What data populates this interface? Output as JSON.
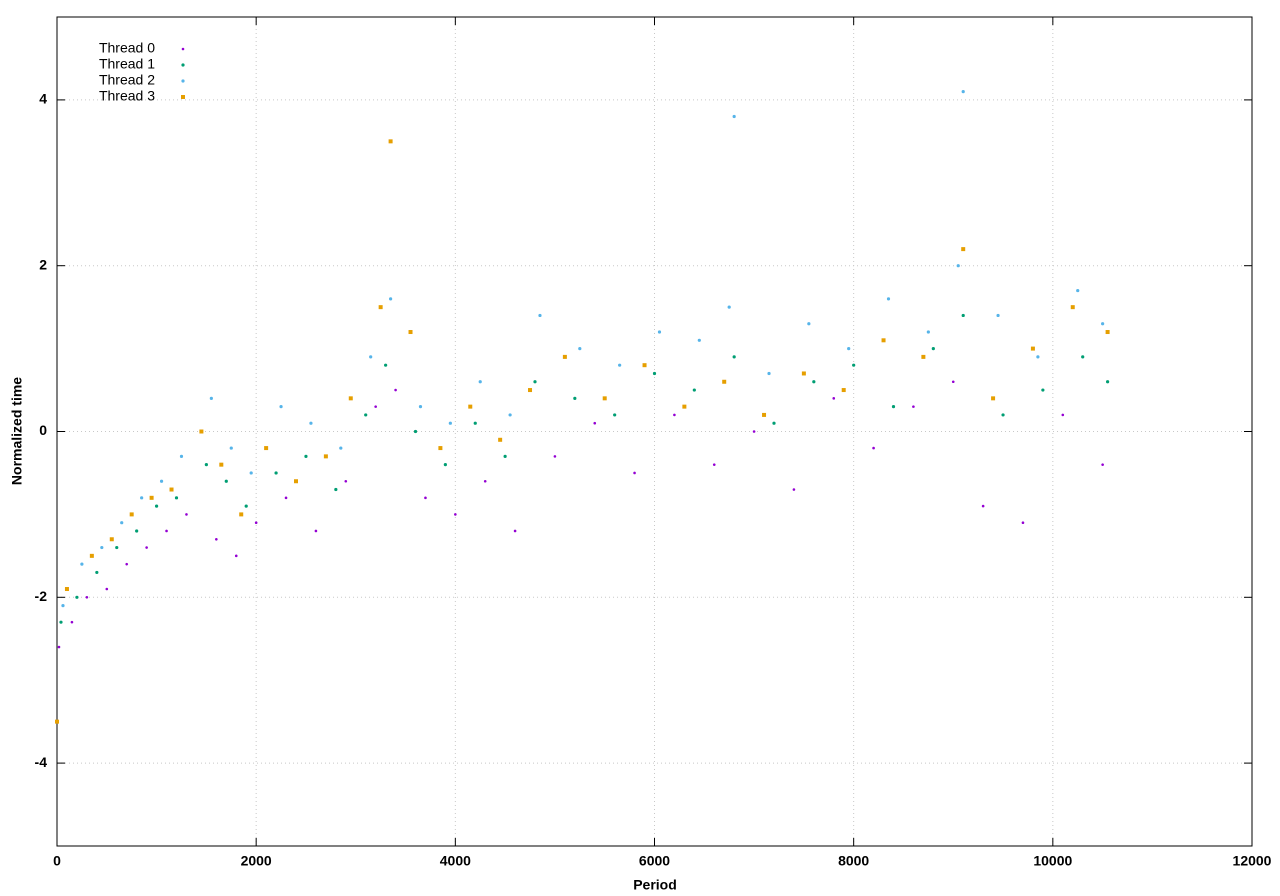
{
  "chart_data": {
    "type": "scatter",
    "x_label": "Period",
    "y_label": "Normalized time",
    "xlim": [
      0,
      12000
    ],
    "xticks": [
      0,
      2000,
      4000,
      6000,
      8000,
      10000,
      12000
    ],
    "ylim": [
      -5,
      5
    ],
    "yticks": [
      -4,
      -2,
      0,
      2,
      4
    ],
    "grid": true,
    "legend": "top-left",
    "series": [
      {
        "name": "Thread 0",
        "color": "#9400d3",
        "marker": "plus",
        "x": [
          20,
          150,
          300,
          500,
          700,
          900,
          1100,
          1300,
          1600,
          1800,
          2000,
          2300,
          2600,
          2900,
          3200,
          3400,
          3700,
          4000,
          4300,
          4600,
          5000,
          5400,
          5800,
          6200,
          6600,
          7000,
          7400,
          7800,
          8200,
          8600,
          9000,
          9300,
          9700,
          10100,
          10500
        ],
        "values": [
          -2.6,
          -2.3,
          -2.0,
          -1.9,
          -1.6,
          -1.4,
          -1.2,
          -1.0,
          -1.3,
          -1.5,
          -1.1,
          -0.8,
          -1.2,
          -0.6,
          0.3,
          0.5,
          -0.8,
          -1.0,
          -0.6,
          -1.2,
          -0.3,
          0.1,
          -0.5,
          0.2,
          -0.4,
          0.0,
          -0.7,
          0.4,
          -0.2,
          0.3,
          0.6,
          -0.9,
          -1.1,
          0.2,
          -0.4
        ]
      },
      {
        "name": "Thread 1",
        "color": "#009e73",
        "marker": "dot",
        "x": [
          40,
          200,
          400,
          600,
          800,
          1000,
          1200,
          1500,
          1700,
          1900,
          2200,
          2500,
          2800,
          3100,
          3300,
          3600,
          3900,
          4200,
          4500,
          4800,
          5200,
          5600,
          6000,
          6400,
          6800,
          7200,
          7600,
          8000,
          8400,
          8800,
          9100,
          9500,
          9900,
          10300,
          10550
        ],
        "values": [
          -2.3,
          -2.0,
          -1.7,
          -1.4,
          -1.2,
          -0.9,
          -0.8,
          -0.4,
          -0.6,
          -0.9,
          -0.5,
          -0.3,
          -0.7,
          0.2,
          0.8,
          0.0,
          -0.4,
          0.1,
          -0.3,
          0.6,
          0.4,
          0.2,
          0.7,
          0.5,
          0.9,
          0.1,
          0.6,
          0.8,
          0.3,
          1.0,
          1.4,
          0.2,
          0.5,
          0.9,
          0.6
        ]
      },
      {
        "name": "Thread 2",
        "color": "#56b4e9",
        "marker": "dot",
        "x": [
          60,
          250,
          450,
          650,
          850,
          1050,
          1250,
          1550,
          1750,
          1950,
          2250,
          2550,
          2850,
          3150,
          3350,
          3650,
          3950,
          4250,
          4550,
          4850,
          5250,
          5650,
          6050,
          6450,
          6750,
          7150,
          7550,
          7950,
          8350,
          8750,
          9050,
          9450,
          9850,
          10250,
          10500,
          6800,
          9100
        ],
        "values": [
          -2.1,
          -1.6,
          -1.4,
          -1.1,
          -0.8,
          -0.6,
          -0.3,
          0.4,
          -0.2,
          -0.5,
          0.3,
          0.1,
          -0.2,
          0.9,
          1.6,
          0.3,
          0.1,
          0.6,
          0.2,
          1.4,
          1.0,
          0.8,
          1.2,
          1.1,
          1.5,
          0.7,
          1.3,
          1.0,
          1.6,
          1.2,
          2.0,
          1.4,
          0.9,
          1.7,
          1.3,
          3.8,
          4.1
        ]
      },
      {
        "name": "Thread 3",
        "color": "#e69f00",
        "marker": "square",
        "x": [
          0,
          100,
          350,
          550,
          750,
          950,
          1150,
          1450,
          1650,
          1850,
          2100,
          2400,
          2700,
          2950,
          3250,
          3350,
          3550,
          3850,
          4150,
          4450,
          4750,
          5100,
          5500,
          5900,
          6300,
          6700,
          7100,
          7500,
          7900,
          8300,
          8700,
          9100,
          9400,
          9800,
          10200,
          10550
        ],
        "values": [
          -3.5,
          -1.9,
          -1.5,
          -1.3,
          -1.0,
          -0.8,
          -0.7,
          0.0,
          -0.4,
          -1.0,
          -0.2,
          -0.6,
          -0.3,
          0.4,
          1.5,
          3.5,
          1.2,
          -0.2,
          0.3,
          -0.1,
          0.5,
          0.9,
          0.4,
          0.8,
          0.3,
          0.6,
          0.2,
          0.7,
          0.5,
          1.1,
          0.9,
          2.2,
          0.4,
          1.0,
          1.5,
          1.2
        ]
      }
    ]
  }
}
